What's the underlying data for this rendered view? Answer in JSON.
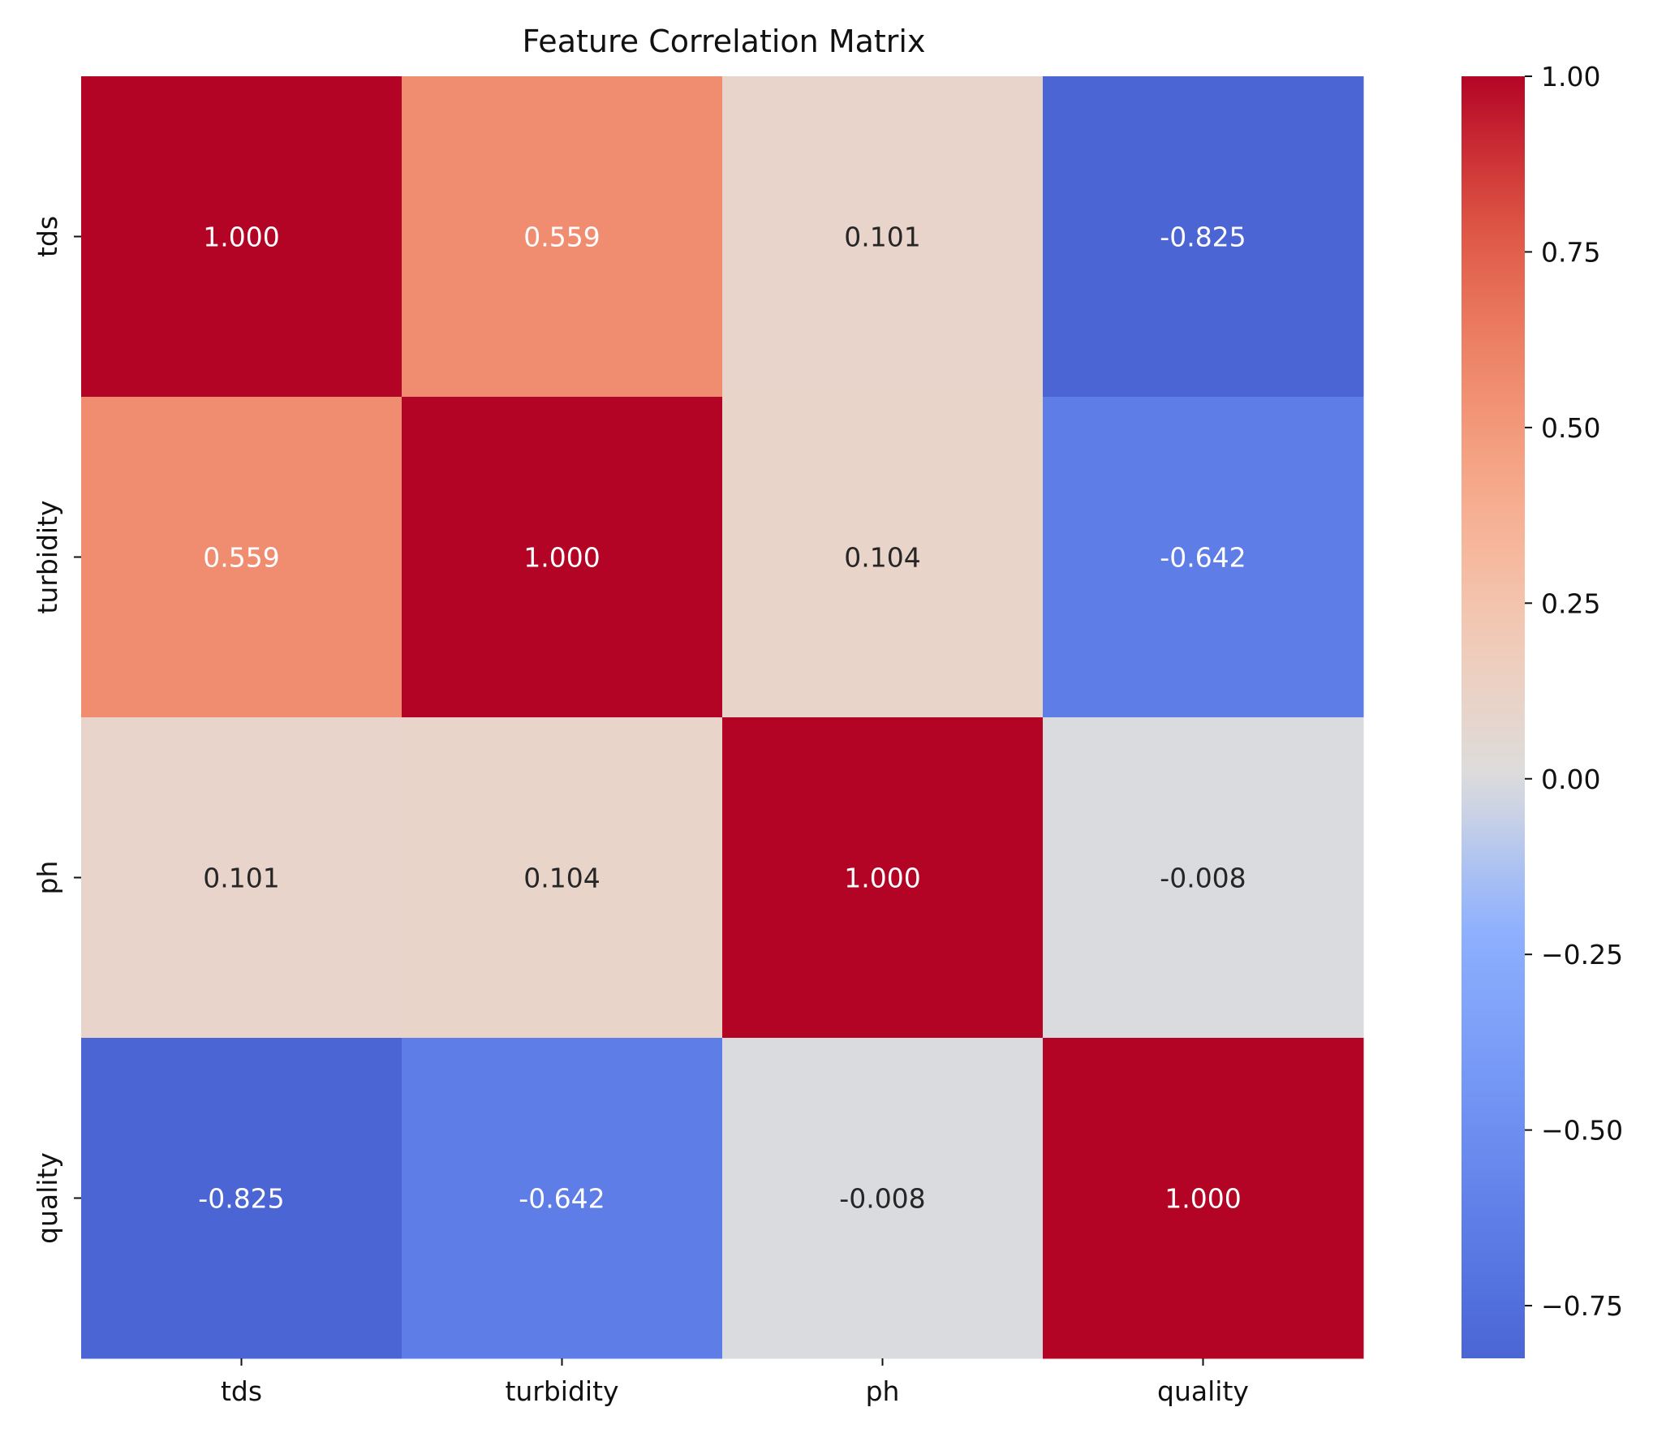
{
  "chart_data": {
    "type": "heatmap",
    "title": "Feature Correlation Matrix",
    "x_categories": [
      "tds",
      "turbidity",
      "ph",
      "quality"
    ],
    "y_categories": [
      "tds",
      "turbidity",
      "ph",
      "quality"
    ],
    "values": [
      [
        1.0,
        0.559,
        0.101,
        -0.825
      ],
      [
        0.559,
        1.0,
        0.104,
        -0.642
      ],
      [
        0.101,
        0.104,
        1.0,
        -0.008
      ],
      [
        -0.825,
        -0.642,
        -0.008,
        1.0
      ]
    ],
    "cell_labels": [
      [
        "1.000",
        "0.559",
        "0.101",
        "-0.825"
      ],
      [
        "0.559",
        "1.000",
        "0.104",
        "-0.642"
      ],
      [
        "0.101",
        "0.104",
        "1.000",
        "-0.008"
      ],
      [
        "-0.825",
        "-0.642",
        "-0.008",
        "1.000"
      ]
    ],
    "colormap": "coolwarm",
    "colorbar": {
      "range": [
        -0.825,
        1.0
      ],
      "ticks": [
        1.0,
        0.75,
        0.5,
        0.25,
        0.0,
        -0.25,
        -0.5,
        -0.75
      ],
      "tick_labels": [
        "1.00",
        "0.75",
        "0.50",
        "0.25",
        "0.00",
        "−0.25",
        "−0.50",
        "−0.75"
      ]
    },
    "xlabel": "",
    "ylabel": "",
    "legend": "colorbar-right",
    "grid": false
  }
}
